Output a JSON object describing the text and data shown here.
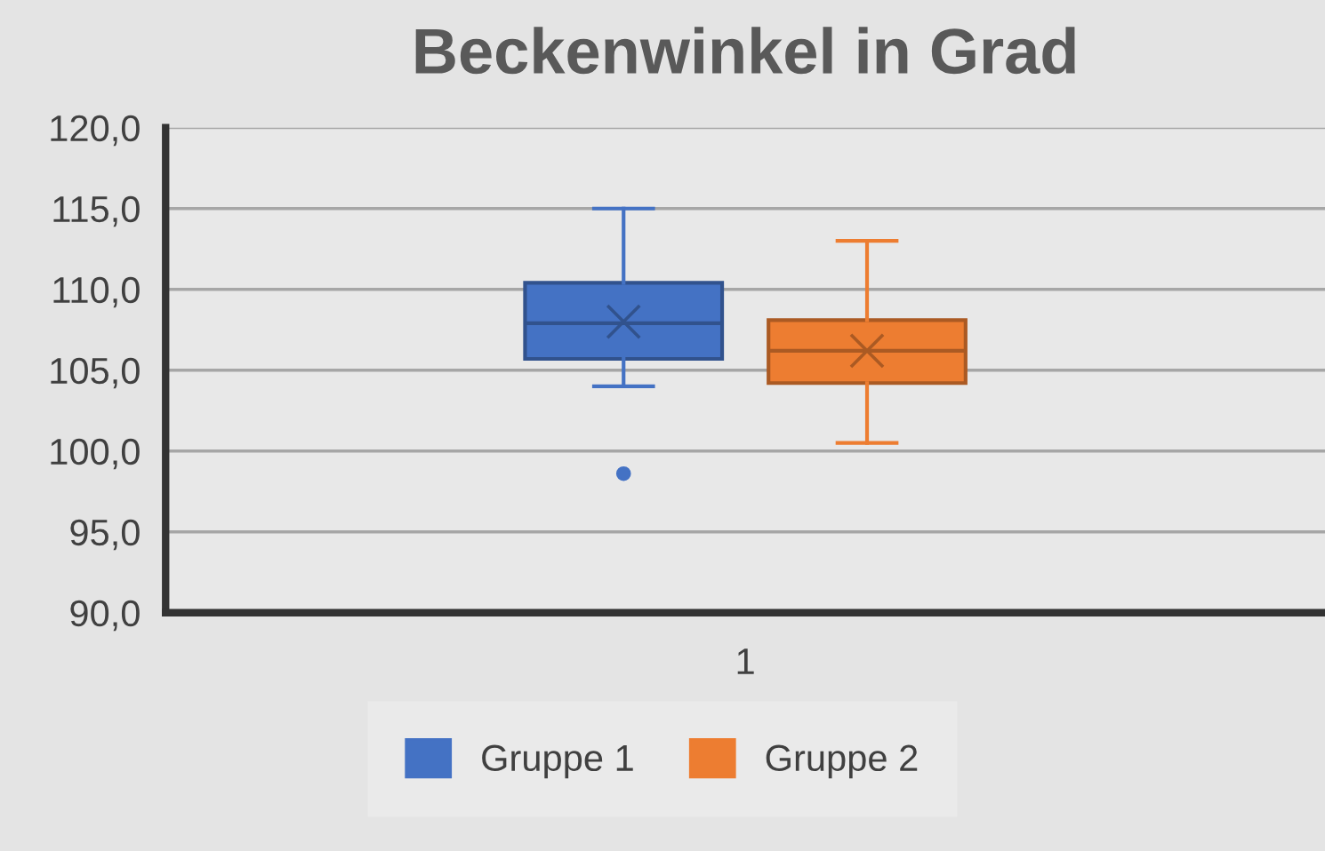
{
  "chart_data": {
    "type": "box",
    "title": "Beckenwinkel in Grad",
    "categories": [
      "1"
    ],
    "series": [
      {
        "name": "Gruppe 1",
        "color": "#4472c4",
        "boxes": [
          {
            "low": 104.0,
            "q1": 105.7,
            "median": 107.9,
            "q3": 110.4,
            "high": 115.0,
            "mean": 108.0,
            "outliers": [
              98.6
            ]
          }
        ]
      },
      {
        "name": "Gruppe 2",
        "color": "#ed7d31",
        "boxes": [
          {
            "low": 100.5,
            "q1": 104.2,
            "median": 106.2,
            "q3": 108.1,
            "high": 113.0,
            "mean": 106.2
          }
        ]
      }
    ],
    "ylim": [
      90,
      120
    ],
    "yticks": [
      {
        "value": 90,
        "label": "90,0"
      },
      {
        "value": 95,
        "label": "95,0"
      },
      {
        "value": 100,
        "label": "100,0"
      },
      {
        "value": 105,
        "label": "105,0"
      },
      {
        "value": 110,
        "label": "110,0"
      },
      {
        "value": 115,
        "label": "115,0"
      },
      {
        "value": 120,
        "label": "120,0"
      }
    ],
    "grid": "y",
    "legend": "bottom"
  }
}
